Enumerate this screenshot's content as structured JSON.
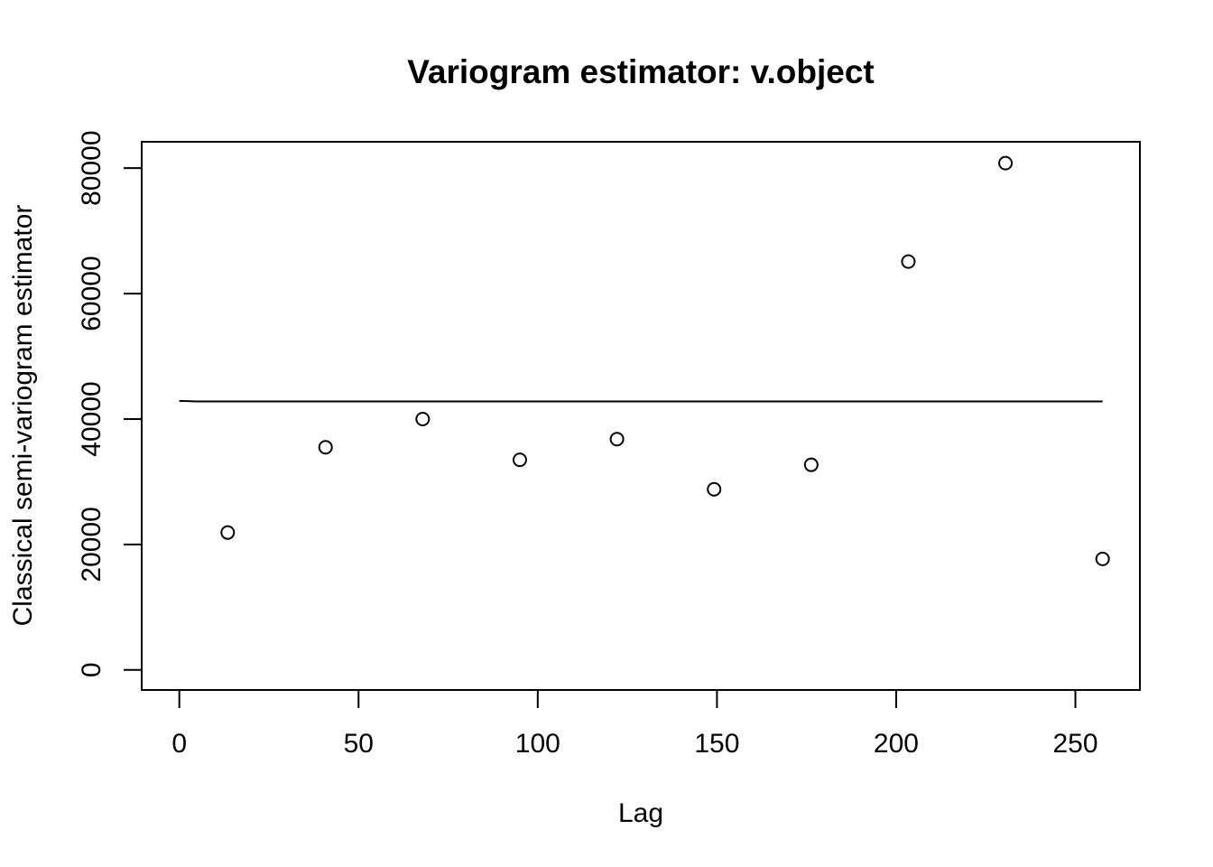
{
  "chart_data": {
    "type": "scatter",
    "title": "Variogram estimator: v.object",
    "xlabel": "Lag",
    "ylabel": "Classical semi-variogram estimator",
    "xlim": [
      -10.5,
      268
    ],
    "ylim": [
      -3200,
      84200
    ],
    "x_ticks": [
      0,
      50,
      100,
      150,
      200,
      250
    ],
    "y_ticks": [
      0,
      20000,
      40000,
      60000,
      80000
    ],
    "grid": false,
    "legend": "none",
    "points": [
      {
        "x": 13.5,
        "y": 21900
      },
      {
        "x": 40.8,
        "y": 35500
      },
      {
        "x": 67.9,
        "y": 40000
      },
      {
        "x": 95.0,
        "y": 33500
      },
      {
        "x": 122.1,
        "y": 36800
      },
      {
        "x": 149.2,
        "y": 28800
      },
      {
        "x": 176.3,
        "y": 32700
      },
      {
        "x": 203.4,
        "y": 65100
      },
      {
        "x": 230.5,
        "y": 80800
      },
      {
        "x": 257.6,
        "y": 17700
      }
    ],
    "fitted_line": [
      {
        "x": 0,
        "y": 42900
      },
      {
        "x": 5,
        "y": 42800
      },
      {
        "x": 257.6,
        "y": 42800
      }
    ]
  }
}
